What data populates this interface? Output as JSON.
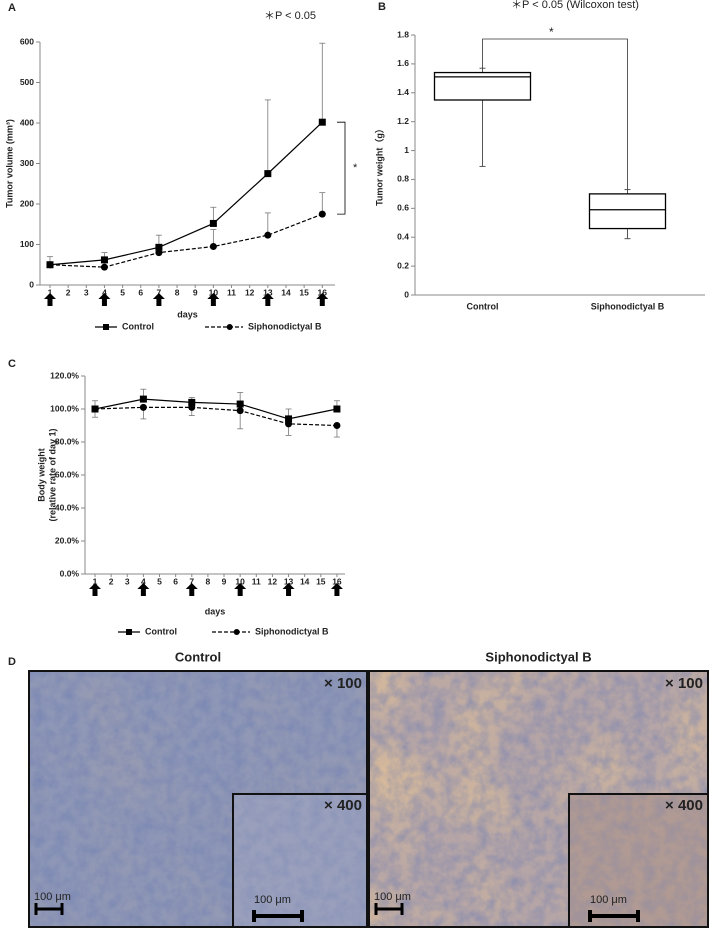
{
  "chart_data": [
    {
      "type": "line",
      "panel": "A",
      "title": "＊P < 0.05",
      "y_label": [
        "Tumor volume (mm³)"
      ],
      "x_label": "days",
      "xlim": [
        0.45,
        16.7
      ],
      "xticks": [
        1,
        2,
        3,
        4,
        5,
        6,
        7,
        8,
        9,
        10,
        11,
        12,
        13,
        14,
        15,
        16
      ],
      "ylim": [
        0,
        600
      ],
      "yticks": [
        0,
        100,
        200,
        300,
        400,
        500,
        600
      ],
      "arrow_days": [
        1,
        4,
        7,
        10,
        13,
        16
      ],
      "error_direction": [
        "up",
        "up"
      ],
      "annotation": "*",
      "x": [
        1,
        4,
        7,
        10,
        13,
        16
      ],
      "series": [
        {
          "name": "Control",
          "color": "#000000",
          "marker": "square",
          "line_style": "solid",
          "values": [
            50,
            62,
            93,
            152,
            275,
            402
          ],
          "errors": [
            20,
            18,
            30,
            40,
            182,
            195
          ]
        },
        {
          "name": "Siphonodictyal B",
          "color": "#000000",
          "marker": "circle",
          "line_style": "dashed",
          "values": [
            50,
            44,
            80,
            95,
            123,
            175
          ],
          "errors": [
            2,
            3,
            5,
            42,
            55,
            53
          ]
        }
      ]
    },
    {
      "type": "box",
      "panel": "B",
      "title": "＊P < 0.05 (Wilcoxon test)",
      "y_label": [
        "Tumor weight（g）"
      ],
      "ylim": [
        0,
        1.8
      ],
      "yticks": [
        0,
        0.2,
        0.4,
        0.6,
        0.8,
        1,
        1.2,
        1.4,
        1.6,
        1.8
      ],
      "annotation": "*",
      "categories": [
        "Control",
        "Siphonodictyal B"
      ],
      "boxes": [
        {
          "min": 0.89,
          "q1": 1.35,
          "median": 1.51,
          "q3": 1.54,
          "max": 1.57
        },
        {
          "min": 0.39,
          "q1": 0.46,
          "median": 0.59,
          "q3": 0.7,
          "max": 0.73
        }
      ]
    },
    {
      "type": "line",
      "panel": "C",
      "y_label": [
        "Body weight",
        "(relative rate of day 1)"
      ],
      "x_label": "days",
      "xlim": [
        0.38,
        16.5
      ],
      "xticks": [
        1,
        2,
        3,
        4,
        5,
        6,
        7,
        8,
        9,
        10,
        11,
        12,
        13,
        14,
        15,
        16
      ],
      "ylim": [
        0,
        120
      ],
      "yticks": [
        {
          "value": 0,
          "label": "0.0%"
        },
        {
          "value": 20,
          "label": "20.0%"
        },
        {
          "value": 40,
          "label": "40.0%"
        },
        {
          "value": 60,
          "label": "60.0%"
        },
        {
          "value": 80,
          "label": "80.0%"
        },
        {
          "value": 100,
          "label": "100.0%"
        },
        {
          "value": 120,
          "label": "120.0%"
        }
      ],
      "arrow_days": [
        1,
        4,
        7,
        10,
        13,
        16
      ],
      "error_direction": [
        "up",
        "down"
      ],
      "x": [
        1,
        4,
        7,
        10,
        13,
        16
      ],
      "series": [
        {
          "name": "Control",
          "color": "#000000",
          "marker": "square",
          "line_style": "solid",
          "values": [
            100,
            106,
            104,
            103,
            94,
            100
          ],
          "errors": [
            5,
            6,
            3,
            7,
            6,
            5
          ]
        },
        {
          "name": "Siphonodictyal B",
          "color": "#000000",
          "marker": "circle",
          "line_style": "dashed",
          "values": [
            100,
            101,
            101,
            99,
            91,
            90
          ],
          "errors": [
            5,
            7,
            5,
            11,
            7,
            7
          ]
        }
      ]
    }
  ],
  "panel_d": {
    "letter": "D",
    "images": [
      {
        "title": "Control",
        "magnification": "× 100",
        "inset_magnification": "× 400",
        "scale_bar": "100 μm",
        "inset_scale_bar": "100 μm"
      },
      {
        "title": "Siphonodictyal B",
        "magnification": "× 100",
        "inset_magnification": "× 400",
        "scale_bar": "100 μm",
        "inset_scale_bar": "100 μm"
      }
    ]
  }
}
